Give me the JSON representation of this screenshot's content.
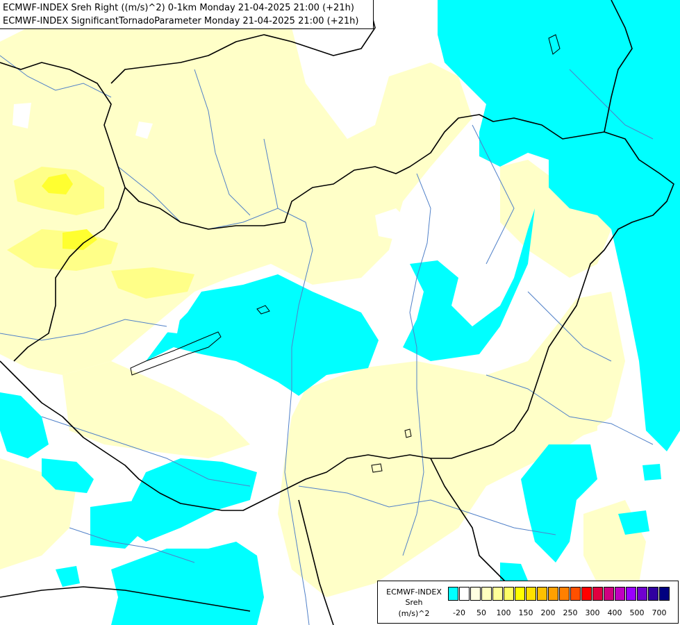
{
  "title": {
    "line1": "ECMWF-INDEX Sreh Right ((m/s)^2) 0-1km Monday 21-04-2025 21:00 (+21h)",
    "line2": "ECMWF-INDEX SignificantTornadoParameter Monday 21-04-2025 21:00 (+21h)"
  },
  "legend": {
    "line1": "ECMWF-INDEX",
    "line2": "Sreh",
    "line3": "(m/s)^2",
    "colors": [
      "#00ffff",
      "#ffffff",
      "#ffffe0",
      "#ffffc0",
      "#ffff99",
      "#ffff66",
      "#ffff00",
      "#ffe000",
      "#ffc000",
      "#ffa000",
      "#ff8000",
      "#ff5000",
      "#ff0000",
      "#e00040",
      "#d00080",
      "#c000c0",
      "#9900ff",
      "#7000d0",
      "#3000a0",
      "#000080"
    ],
    "ticks": [
      "-20",
      "50",
      "100",
      "150",
      "200",
      "250",
      "300",
      "400",
      "500",
      "700"
    ]
  },
  "colors": {
    "cyan": "#00ffff",
    "pale_yellow": "#ffffc0",
    "light_yellow": "#ffff80",
    "yellow": "#ffff00",
    "border": "#000000",
    "river": "#5080c8"
  }
}
